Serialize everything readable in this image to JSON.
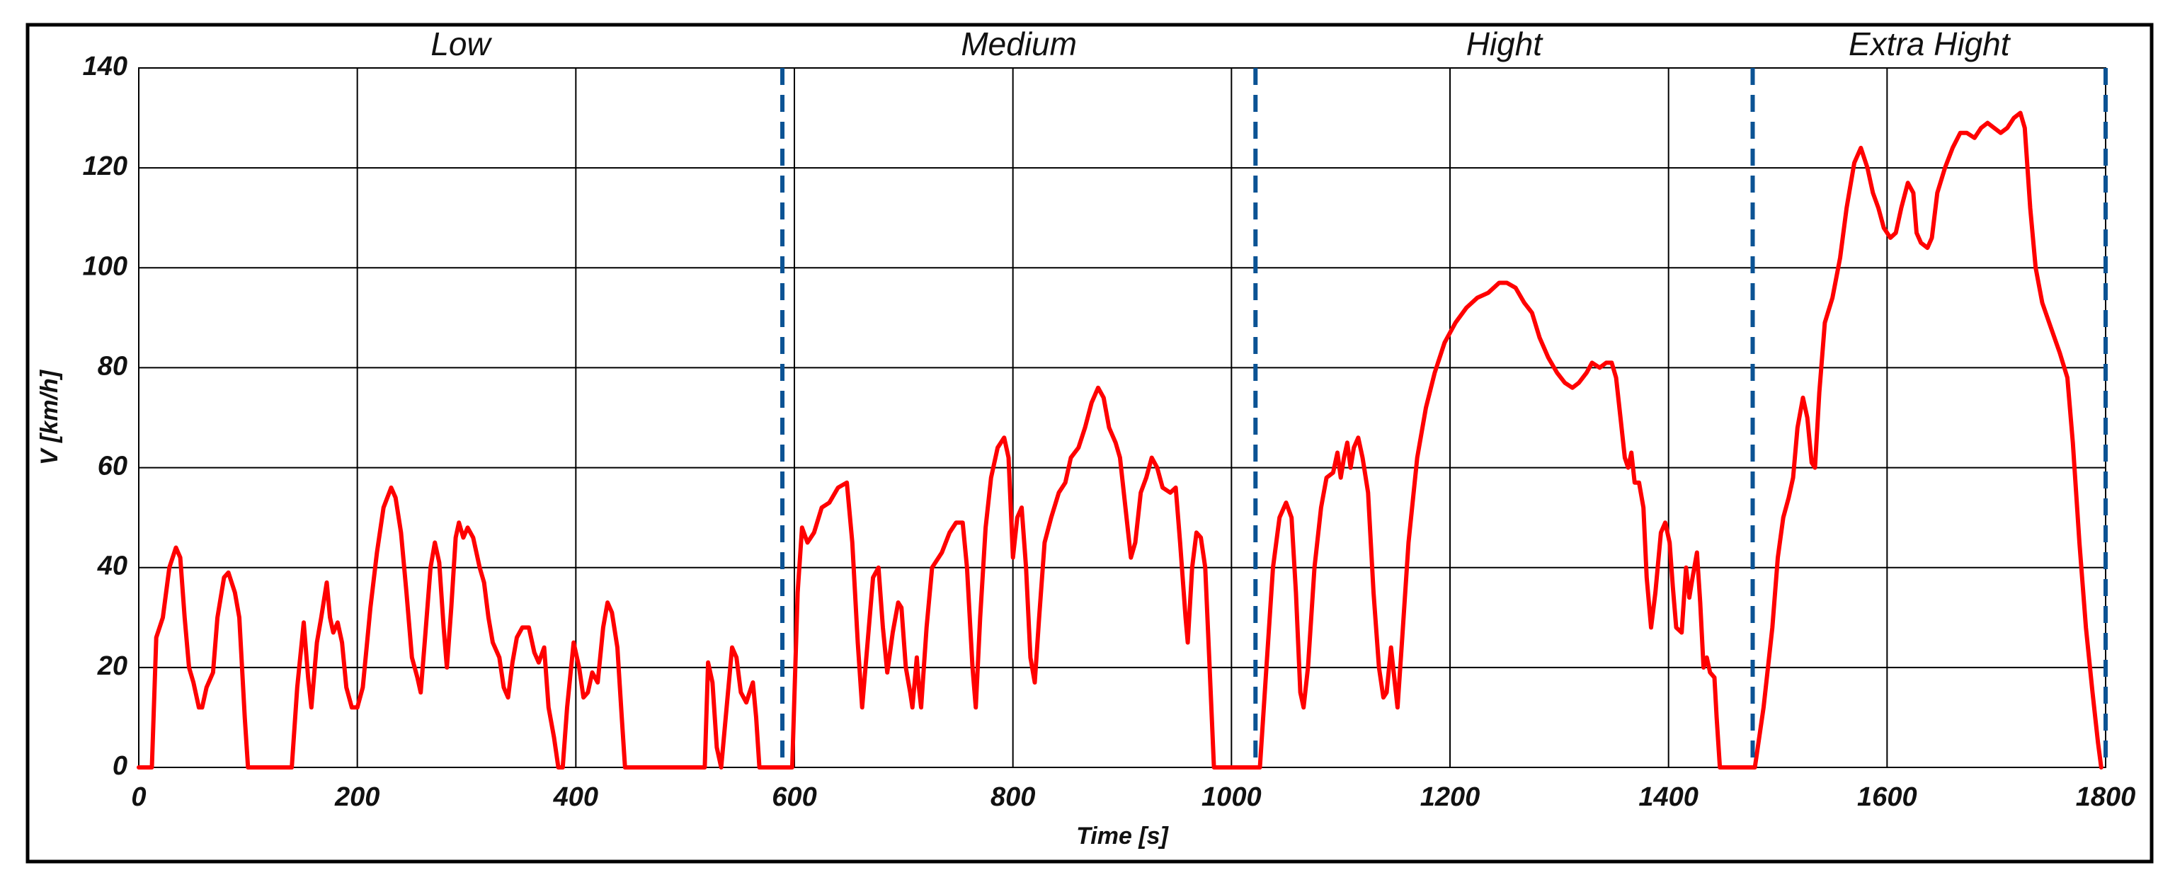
{
  "chart_data": {
    "type": "line",
    "xlabel": "Time [s]",
    "ylabel": "V [km/h]",
    "x": [
      0,
      12,
      16,
      22,
      28,
      34,
      38,
      42,
      46,
      50,
      55,
      58,
      62,
      68,
      72,
      78,
      82,
      88,
      92,
      97,
      100,
      140,
      145,
      151,
      155,
      158,
      163,
      167,
      172,
      175,
      178,
      182,
      186,
      190,
      195,
      200,
      205,
      212,
      218,
      224,
      231,
      235,
      240,
      245,
      250,
      255,
      258,
      262,
      267,
      271,
      275,
      279,
      282,
      286,
      290,
      293,
      297,
      301,
      306,
      312,
      316,
      320,
      324,
      330,
      334,
      338,
      342,
      346,
      351,
      357,
      362,
      366,
      371,
      375,
      380,
      384,
      388,
      392,
      398,
      403,
      407,
      411,
      415,
      420,
      425,
      429,
      433,
      438,
      442,
      445,
      518,
      521,
      525,
      529,
      533,
      538,
      543,
      547,
      551,
      556,
      559,
      562,
      565,
      568,
      590,
      598,
      603,
      607,
      612,
      618,
      625,
      632,
      640,
      648,
      653,
      658,
      662,
      667,
      672,
      677,
      681,
      685,
      690,
      695,
      698,
      702,
      706,
      708,
      712,
      714,
      716,
      721,
      726,
      735,
      742,
      748,
      754,
      758,
      763,
      766,
      770,
      775,
      780,
      786,
      792,
      796,
      800,
      804,
      808,
      812,
      816,
      820,
      824,
      829,
      835,
      842,
      848,
      853,
      860,
      866,
      872,
      878,
      883,
      888,
      894,
      898,
      903,
      908,
      912,
      917,
      922,
      927,
      932,
      937,
      944,
      949,
      953,
      958,
      960,
      964,
      968,
      972,
      976,
      980,
      984,
      1022,
      1026,
      1032,
      1038,
      1044,
      1050,
      1055,
      1059,
      1063,
      1066,
      1070,
      1076,
      1082,
      1087,
      1093,
      1097,
      1100,
      1103,
      1106,
      1109,
      1112,
      1116,
      1120,
      1125,
      1130,
      1135,
      1139,
      1142,
      1146,
      1149,
      1152,
      1156,
      1162,
      1170,
      1178,
      1186,
      1195,
      1205,
      1215,
      1225,
      1235,
      1245,
      1252,
      1260,
      1268,
      1275,
      1282,
      1290,
      1298,
      1305,
      1312,
      1318,
      1325,
      1330,
      1337,
      1343,
      1348,
      1352,
      1356,
      1360,
      1363,
      1366,
      1369,
      1373,
      1377,
      1380,
      1384,
      1388,
      1393,
      1397,
      1401,
      1404,
      1407,
      1412,
      1416,
      1419,
      1422,
      1426,
      1429,
      1432,
      1435,
      1438,
      1442,
      1444,
      1447,
      1477,
      1479,
      1487,
      1495,
      1500,
      1505,
      1510,
      1514,
      1518,
      1523,
      1527,
      1531,
      1534,
      1538,
      1543,
      1550,
      1557,
      1563,
      1570,
      1576,
      1582,
      1587,
      1592,
      1597,
      1603,
      1608,
      1613,
      1619,
      1624,
      1627,
      1631,
      1637,
      1641,
      1646,
      1653,
      1660,
      1667,
      1673,
      1680,
      1686,
      1692,
      1698,
      1704,
      1710,
      1716,
      1722,
      1726,
      1731,
      1736,
      1742,
      1750,
      1758,
      1765,
      1770,
      1776,
      1782,
      1788,
      1793,
      1796
    ],
    "values": [
      0,
      0,
      26,
      30,
      40,
      44,
      42,
      30,
      20,
      17,
      12,
      12,
      16,
      19,
      30,
      38,
      39,
      35,
      30,
      10,
      0,
      0,
      16,
      29,
      18,
      12,
      25,
      30,
      37,
      30,
      27,
      29,
      25,
      16,
      12,
      12,
      16,
      32,
      43,
      52,
      56,
      54,
      47,
      35,
      22,
      18,
      15,
      26,
      40,
      45,
      41,
      28,
      20,
      32,
      46,
      49,
      46,
      48,
      46,
      40,
      37,
      30,
      25,
      22,
      16,
      14,
      21,
      26,
      28,
      28,
      23,
      21,
      24,
      12,
      6,
      0,
      0,
      12,
      25,
      20,
      14,
      15,
      19,
      17,
      28,
      33,
      31,
      24,
      10,
      0,
      0,
      21,
      17,
      4,
      0,
      12,
      24,
      22,
      15,
      13,
      15,
      17,
      10,
      0,
      0,
      0,
      35,
      48,
      45,
      47,
      52,
      53,
      56,
      57,
      45,
      25,
      12,
      25,
      38,
      40,
      28,
      19,
      27,
      33,
      32,
      20,
      15,
      12,
      22,
      16,
      12,
      28,
      40,
      43,
      47,
      49,
      49,
      40,
      20,
      12,
      30,
      48,
      58,
      64,
      66,
      62,
      42,
      50,
      52,
      40,
      22,
      17,
      30,
      45,
      50,
      55,
      57,
      62,
      64,
      68,
      73,
      76,
      74,
      68,
      65,
      62,
      52,
      42,
      45,
      55,
      58,
      62,
      60,
      56,
      55,
      56,
      45,
      30,
      25,
      40,
      47,
      46,
      40,
      20,
      0,
      0,
      0,
      20,
      40,
      50,
      53,
      50,
      35,
      15,
      12,
      20,
      40,
      52,
      58,
      59,
      63,
      58,
      62,
      65,
      60,
      64,
      66,
      62,
      55,
      35,
      20,
      14,
      15,
      24,
      18,
      12,
      25,
      45,
      62,
      72,
      79,
      85,
      89,
      92,
      94,
      95,
      97,
      97,
      96,
      93,
      91,
      86,
      82,
      79,
      77,
      76,
      77,
      79,
      81,
      80,
      81,
      81,
      78,
      70,
      62,
      60,
      63,
      57,
      57,
      52,
      38,
      28,
      35,
      47,
      49,
      45,
      36,
      28,
      27,
      40,
      34,
      38,
      43,
      33,
      20,
      22,
      19,
      18,
      10,
      0,
      0,
      0,
      12,
      28,
      42,
      50,
      54,
      58,
      68,
      74,
      70,
      61,
      60,
      75,
      89,
      94,
      102,
      112,
      121,
      124,
      120,
      115,
      112,
      108,
      106,
      107,
      112,
      117,
      115,
      107,
      105,
      104,
      106,
      115,
      120,
      124,
      127,
      127,
      126,
      128,
      129,
      128,
      127,
      128,
      130,
      131,
      128,
      112,
      100,
      93,
      88,
      83,
      78,
      65,
      45,
      28,
      15,
      5,
      0
    ],
    "color": "#ff0000",
    "xlim": [
      0,
      1800
    ],
    "ylim": [
      0,
      140
    ],
    "xticks": [
      0,
      200,
      400,
      600,
      800,
      1000,
      1200,
      1400,
      1600,
      1800
    ],
    "yticks": [
      0,
      20,
      40,
      60,
      80,
      100,
      120,
      140
    ],
    "grid": true,
    "phases": [
      "Low",
      "Medium",
      "Hight",
      "Extra Hight"
    ],
    "phase_boundaries": [
      0,
      589,
      1022,
      1477,
      1800
    ],
    "boundary_color": "#0b5394"
  }
}
